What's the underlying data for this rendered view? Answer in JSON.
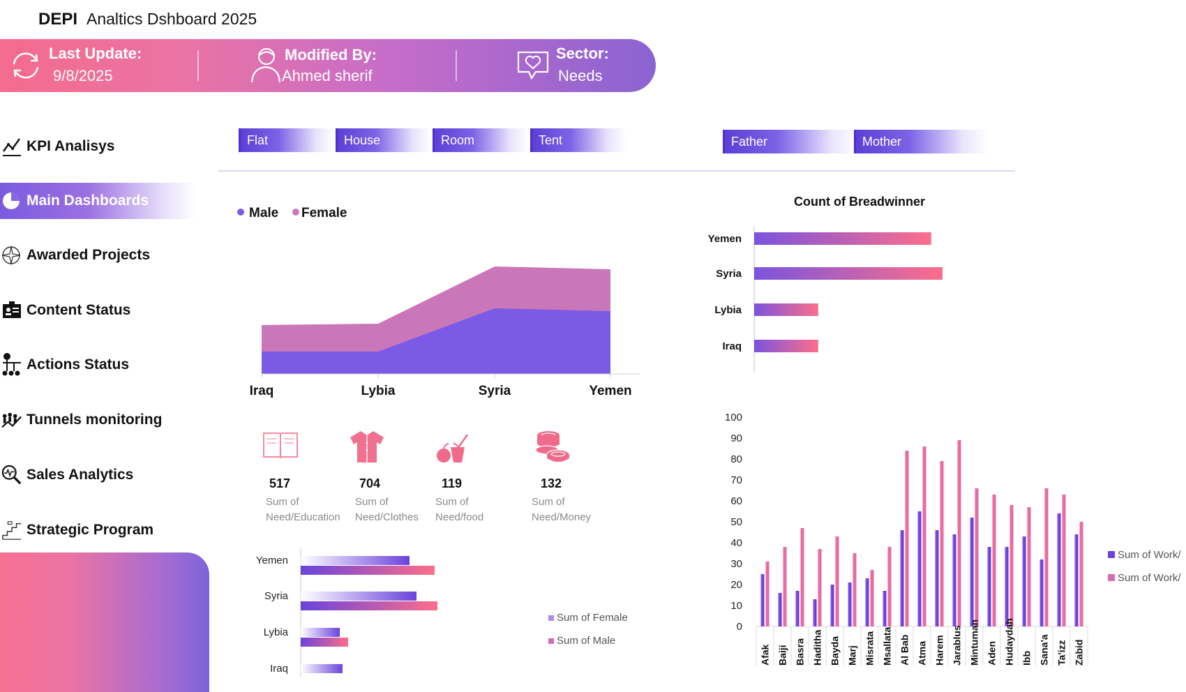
{
  "header": {
    "brand": "DEPI",
    "title": "Analtics Dshboard 2025"
  },
  "banner": {
    "last_update_label": "Last Update:",
    "last_update_value": "9/8/2025",
    "modified_by_label": "Modified By:",
    "modified_by_value": "Ahmed sherif",
    "sector_label": "Sector:",
    "sector_value": "Needs"
  },
  "sidebar": {
    "items": [
      {
        "label": "KPI Analisys",
        "icon": "line-chart-icon"
      },
      {
        "label": "Main Dashboards",
        "icon": "pie-chart-icon"
      },
      {
        "label": "Awarded Projects",
        "icon": "compass-icon"
      },
      {
        "label": "Content Status",
        "icon": "id-card-icon"
      },
      {
        "label": "Actions Status",
        "icon": "team-icon"
      },
      {
        "label": "Tunnels monitoring",
        "icon": "group-trend-icon"
      },
      {
        "label": "Sales Analytics",
        "icon": "magnifier-chart-icon"
      },
      {
        "label": "Strategic Program",
        "icon": "stairs-icon"
      }
    ]
  },
  "slicers": {
    "housing": [
      "Flat",
      "House",
      "Room",
      "Tent"
    ],
    "breadwinner": [
      "Father",
      "Mother"
    ]
  },
  "colors": {
    "male": "#7b5be6",
    "female": "#c977b8",
    "pink": "#fb6f8c",
    "purple": "#6a43dc"
  },
  "kpis": [
    {
      "value": "517",
      "label_line1": "Sum of",
      "label_line2": "Need/Education",
      "icon": "book-icon"
    },
    {
      "value": "704",
      "label_line1": "Sum of",
      "label_line2": "Need/Clothes",
      "icon": "shirt-icon"
    },
    {
      "value": "119",
      "label_line1": "Sum of",
      "label_line2": "Need/food",
      "icon": "food-icon"
    },
    {
      "value": "132",
      "label_line1": "Sum of",
      "label_line2": "Need/Money",
      "icon": "coins-icon"
    }
  ],
  "chart_data": [
    {
      "type": "area",
      "title": "",
      "legend": [
        "Male",
        "Female"
      ],
      "categories": [
        "Iraq",
        "Lybia",
        "Syria",
        "Yemen"
      ],
      "series": [
        {
          "name": "Male",
          "values": [
            16,
            16,
            47,
            45
          ]
        },
        {
          "name": "Female",
          "values": [
            19,
            20,
            30,
            30
          ]
        }
      ],
      "ylim": [
        0,
        100
      ]
    },
    {
      "type": "bar",
      "title": "Count of Breadwinner",
      "orientation": "horizontal",
      "categories": [
        "Yemen",
        "Syria",
        "Lybia",
        "Iraq"
      ],
      "values": [
        47,
        50,
        17,
        17
      ],
      "xlim": [
        0,
        60
      ]
    },
    {
      "type": "bar",
      "title": "",
      "orientation": "horizontal",
      "categories": [
        "Yemen",
        "Syria",
        "Lybia",
        "Iraq"
      ],
      "series": [
        {
          "name": "Sum of Female",
          "values": [
            78,
            83,
            28,
            30
          ]
        },
        {
          "name": "Sum of Male",
          "values": [
            96,
            98,
            34,
            0
          ]
        }
      ],
      "legend": [
        "Sum of Female",
        "Sum of Male"
      ],
      "xlim": [
        0,
        120
      ]
    },
    {
      "type": "bar",
      "title": "",
      "categories": [
        "Afak",
        "Baiji",
        "Basra",
        "Haditha",
        "Bayda",
        "Marj",
        "Misrata",
        "Msallata",
        "Al Bab",
        "Atma",
        "Harem",
        "Jarablus",
        "Mintuman",
        "Aden",
        "Hudaydah",
        "Ibb",
        "Sana'a",
        "Ta'izz",
        "Zabid"
      ],
      "series": [
        {
          "name": "Sum of Work/",
          "values": [
            25,
            16,
            17,
            13,
            20,
            21,
            23,
            17,
            46,
            55,
            46,
            44,
            52,
            38,
            38,
            43,
            32,
            54,
            44
          ]
        },
        {
          "name": "Sum of Work/",
          "values": [
            31,
            38,
            47,
            37,
            43,
            35,
            27,
            38,
            84,
            86,
            79,
            89,
            66,
            63,
            58,
            57,
            66,
            63,
            50
          ]
        }
      ],
      "legend": [
        "Sum of Work/",
        "Sum of Work/"
      ],
      "yticks": [
        "0",
        "10",
        "20",
        "30",
        "40",
        "50",
        "60",
        "70",
        "80",
        "90",
        "100"
      ],
      "ylim": [
        0,
        100
      ]
    }
  ]
}
